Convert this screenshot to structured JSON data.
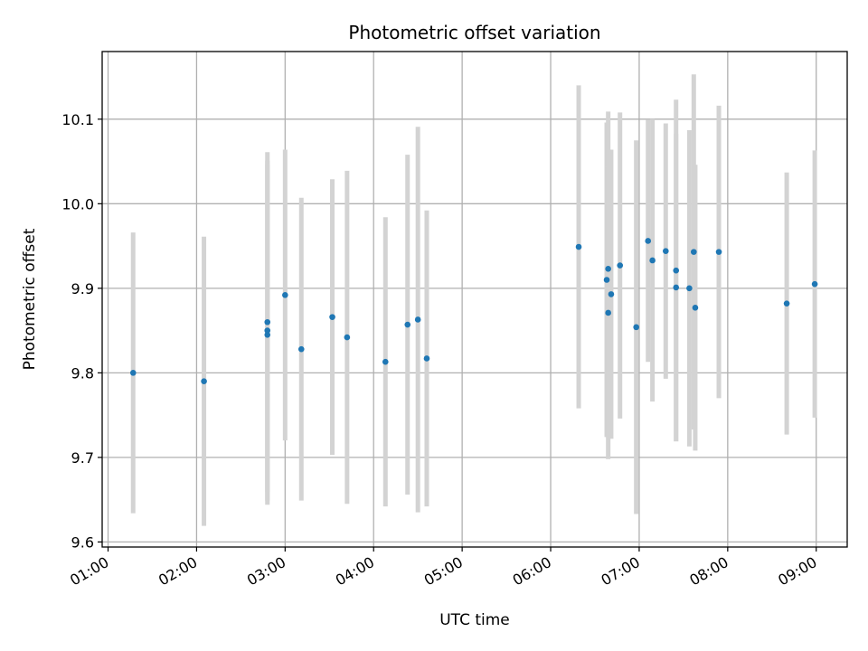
{
  "chart_data": {
    "type": "scatter",
    "title": "Photometric offset variation",
    "xlabel": "UTC time",
    "ylabel": "Photometric offset",
    "x_tick_labels": [
      "01:00",
      "02:00",
      "03:00",
      "04:00",
      "05:00",
      "06:00",
      "07:00",
      "08:00",
      "09:00"
    ],
    "y_tick_labels": [
      "9.6",
      "9.7",
      "9.8",
      "9.9",
      "10.0",
      "10.1"
    ],
    "y_ticks": [
      9.6,
      9.7,
      9.8,
      9.9,
      10.0,
      10.1
    ],
    "xlim": [
      "00:56",
      "09:21"
    ],
    "ylim": [
      9.594,
      10.18
    ],
    "grid": true,
    "point_color": "#1f77b4",
    "errorbar_color": "#d3d3d3",
    "series": [
      {
        "points": [
          {
            "x": "01:17",
            "y": 9.8,
            "err": 0.166
          },
          {
            "x": "02:05",
            "y": 9.79,
            "err": 0.171
          },
          {
            "x": "02:48",
            "y": 9.86,
            "err": 0.201
          },
          {
            "x": "02:48",
            "y": 9.845,
            "err": 0.201
          },
          {
            "x": "02:48",
            "y": 9.85,
            "err": 0.201
          },
          {
            "x": "03:00",
            "y": 9.892,
            "err": 0.172
          },
          {
            "x": "03:11",
            "y": 9.828,
            "err": 0.179
          },
          {
            "x": "03:32",
            "y": 9.866,
            "err": 0.163
          },
          {
            "x": "03:42",
            "y": 9.842,
            "err": 0.197
          },
          {
            "x": "04:08",
            "y": 9.813,
            "err": 0.171
          },
          {
            "x": "04:23",
            "y": 9.857,
            "err": 0.201
          },
          {
            "x": "04:30",
            "y": 9.863,
            "err": 0.228
          },
          {
            "x": "04:36",
            "y": 9.817,
            "err": 0.175
          },
          {
            "x": "06:19",
            "y": 9.949,
            "err": 0.191
          },
          {
            "x": "06:38",
            "y": 9.91,
            "err": 0.186
          },
          {
            "x": "06:39",
            "y": 9.923,
            "err": 0.186
          },
          {
            "x": "06:39",
            "y": 9.871,
            "err": 0.173
          },
          {
            "x": "06:41",
            "y": 9.893,
            "err": 0.171
          },
          {
            "x": "06:47",
            "y": 9.927,
            "err": 0.181
          },
          {
            "x": "06:58",
            "y": 9.854,
            "err": 0.221
          },
          {
            "x": "07:06",
            "y": 9.956,
            "err": 0.143
          },
          {
            "x": "07:09",
            "y": 9.933,
            "err": 0.167
          },
          {
            "x": "07:18",
            "y": 9.944,
            "err": 0.151
          },
          {
            "x": "07:25",
            "y": 9.921,
            "err": 0.202
          },
          {
            "x": "07:25",
            "y": 9.901,
            "err": 0.182
          },
          {
            "x": "07:34",
            "y": 9.9,
            "err": 0.187
          },
          {
            "x": "07:37",
            "y": 9.943,
            "err": 0.21
          },
          {
            "x": "07:38",
            "y": 9.877,
            "err": 0.169
          },
          {
            "x": "07:54",
            "y": 9.943,
            "err": 0.173
          },
          {
            "x": "08:40",
            "y": 9.882,
            "err": 0.155
          },
          {
            "x": "08:59",
            "y": 9.905,
            "err": 0.158
          }
        ]
      }
    ]
  }
}
